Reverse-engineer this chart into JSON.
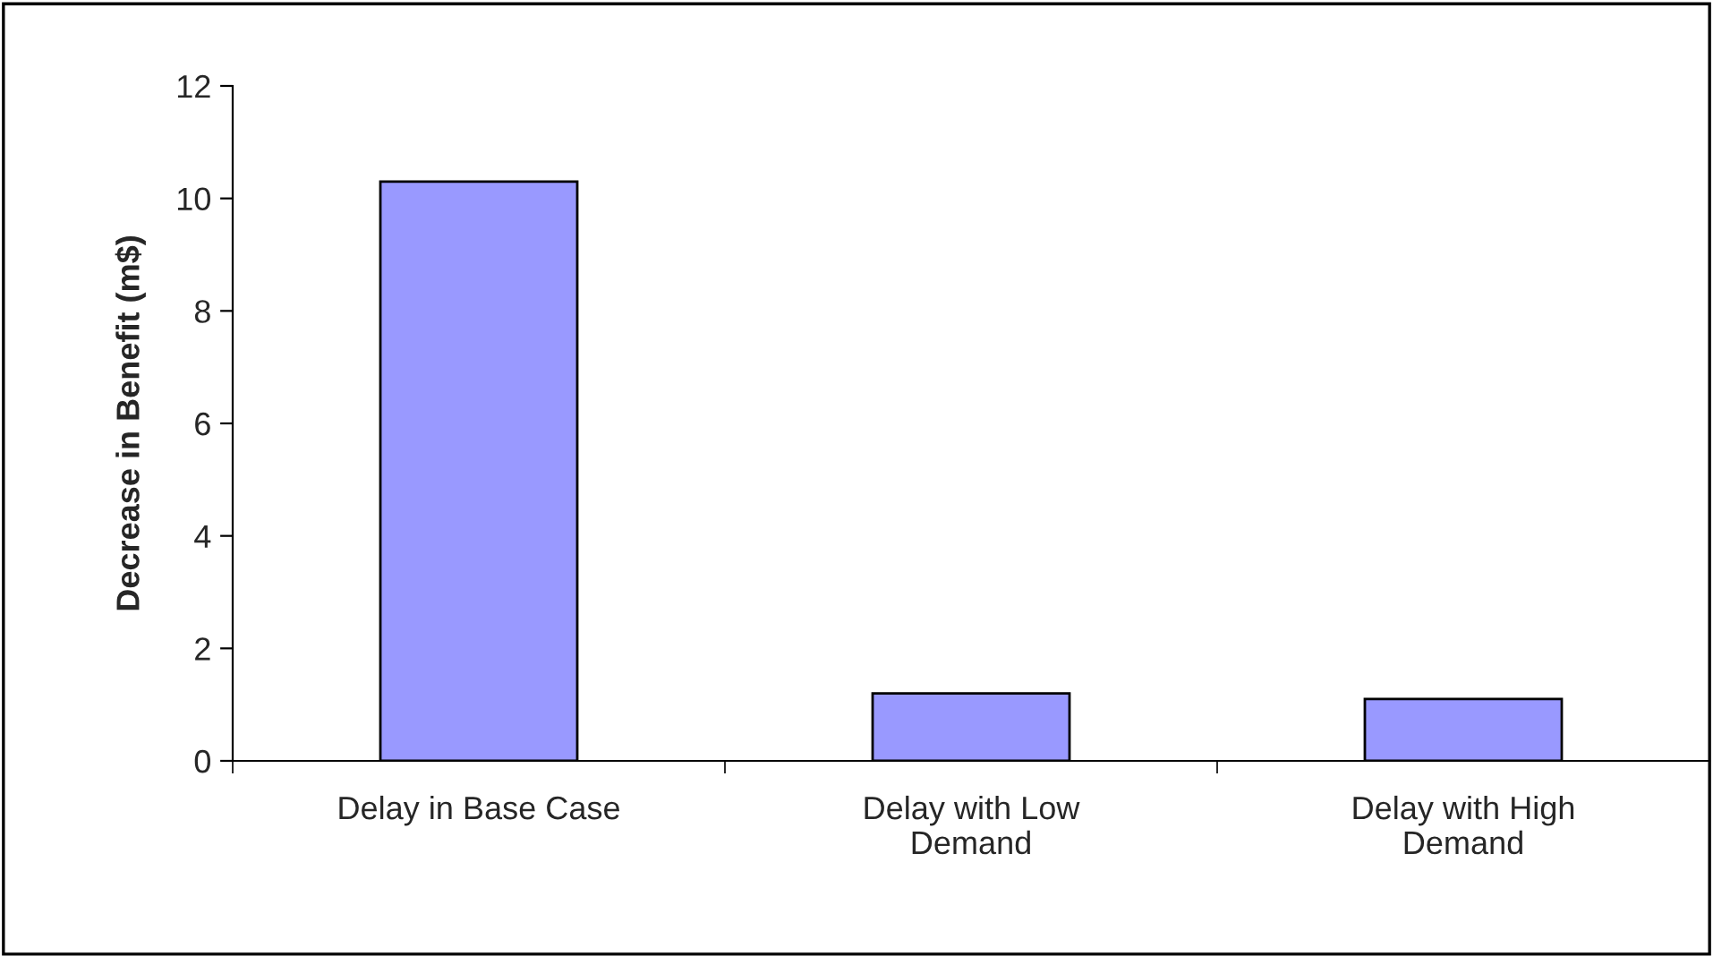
{
  "chart_data": {
    "type": "bar",
    "ylabel": "Decrease in Benefit (m$)",
    "categories": [
      "Delay in Base Case",
      "Delay with Low Demand",
      "Delay with High Demand"
    ],
    "values": [
      10.3,
      1.2,
      1.1
    ],
    "color": "#9999ff",
    "ylim": [
      0,
      12
    ],
    "yticks": [
      0,
      2,
      4,
      6,
      8,
      10,
      12
    ],
    "grid": false,
    "legend": false
  }
}
